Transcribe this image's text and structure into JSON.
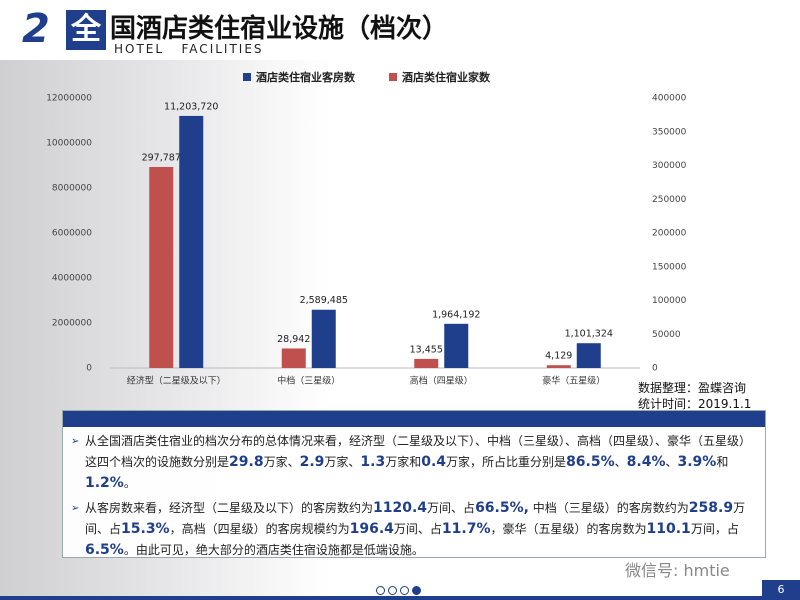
{
  "header": {
    "number": "2",
    "title_first": "全",
    "title_rest": "国酒店类住宿业设施（档次）",
    "subtitle": "HOTEL   FACILITIES"
  },
  "chart_data": {
    "type": "bar",
    "categories": [
      "经济型（二星级及以下）",
      "中档（三星级）",
      "高档（四星级）",
      "豪华（五星级）"
    ],
    "series": [
      {
        "name": "酒店类住宿业客房数",
        "color": "#1f3f8c",
        "axis": "y",
        "values": [
          11203720,
          2589485,
          1964192,
          1101324
        ],
        "value_labels": [
          "11,203,720",
          "2,589,485",
          "1,964,192",
          "1,101,324"
        ]
      },
      {
        "name": "酒店类住宿业家数",
        "color": "#c0504d",
        "axis": "y2",
        "values": [
          297787,
          28942,
          13455,
          4129
        ],
        "value_labels": [
          "297,787",
          "28,942",
          "13,455",
          "4,129"
        ]
      }
    ],
    "ylim": [
      0,
      12000000
    ],
    "yticks": [
      0,
      2000000,
      4000000,
      6000000,
      8000000,
      10000000,
      12000000
    ],
    "y2lim": [
      0,
      400000
    ],
    "y2ticks": [
      0,
      50000,
      100000,
      150000,
      200000,
      250000,
      300000,
      350000,
      400000
    ],
    "legend": "top"
  },
  "source": [
    "数据整理：盈蝶咨询",
    "统计时间：2019.1.1"
  ],
  "notes": [
    [
      "从全国酒店类住宿业的档次分布的总体情况来看，经济型（二星级及以下）、中档（三星级）、高档（四星级）、豪华（五星级）这四个档次的设施数分别是",
      {
        "text": "29.8",
        "bold": true
      },
      "万家、",
      {
        "text": "2.9",
        "bold": true
      },
      "万家、",
      {
        "text": "1.3",
        "bold": true
      },
      "万家和",
      {
        "text": "0.4",
        "bold": true
      },
      "万家，所占比重分别是",
      {
        "text": "86.5%",
        "bold": true
      },
      "、",
      {
        "text": "8.4%",
        "bold": true
      },
      "、",
      {
        "text": "3.9%",
        "bold": true
      },
      "和",
      {
        "text": "1.2%",
        "bold": true
      },
      "。"
    ],
    [
      "从客房数来看，经济型（二星级及以下）的客房数约为",
      {
        "text": "1120.4",
        "bold": true
      },
      "万间、占",
      {
        "text": "66.5%,",
        "bold": true
      },
      " 中档（三星级）的客房数约为",
      {
        "text": "258.9",
        "bold": true
      },
      "万间、占",
      {
        "text": "15.3%",
        "bold": true
      },
      "，高档（四星级）的客房规模约为",
      {
        "text": "196.4",
        "bold": true
      },
      "万间、占",
      {
        "text": "11.7%",
        "bold": true
      },
      "，豪华（五星级）的客房数为",
      {
        "text": "110.1",
        "bold": true
      },
      "万间，占",
      {
        "text": "6.5%",
        "bold": true
      },
      "。由此可见，绝大部分的酒店类住宿设施都是低端设施。"
    ]
  ],
  "watermark": "微信号: hmtie",
  "page_number": "6"
}
